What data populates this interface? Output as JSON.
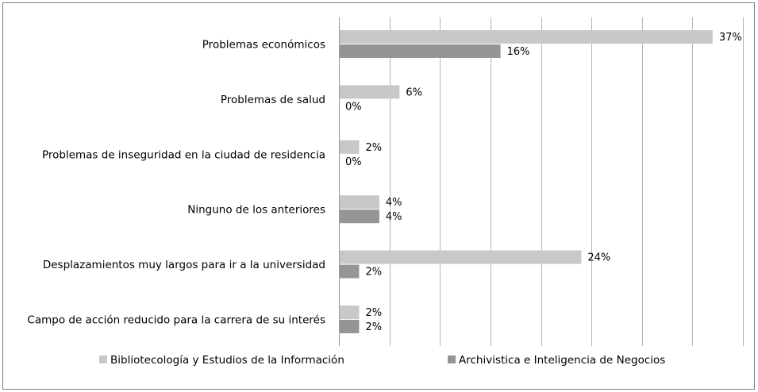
{
  "chart_data": {
    "type": "bar",
    "orientation": "horizontal",
    "title": "",
    "xlabel": "",
    "ylabel": "",
    "xlim": [
      0,
      40
    ],
    "grid": true,
    "legend_position": "bottom",
    "categories": [
      "Problemas económicos",
      "Problemas de salud",
      "Problemas de inseguridad en la ciudad de residencia",
      "Ninguno de los anteriores",
      "Desplazamientos muy largos para ir a la universidad",
      "Campo de acción reducido para la carrera de su interés"
    ],
    "series": [
      {
        "name": "Bibliotecología y Estudios de la Información",
        "color": "#c8c8c8",
        "values": [
          37,
          6,
          2,
          4,
          24,
          2
        ],
        "labels": [
          "37%",
          "6%",
          "2%",
          "4%",
          "24%",
          "2%"
        ]
      },
      {
        "name": "Archivistica e Inteligencia de Negocios",
        "color": "#959595",
        "values": [
          16,
          0,
          0,
          4,
          2,
          2
        ],
        "labels": [
          "16%",
          "0%",
          "0%",
          "4%",
          "2%",
          "2%"
        ]
      }
    ]
  }
}
